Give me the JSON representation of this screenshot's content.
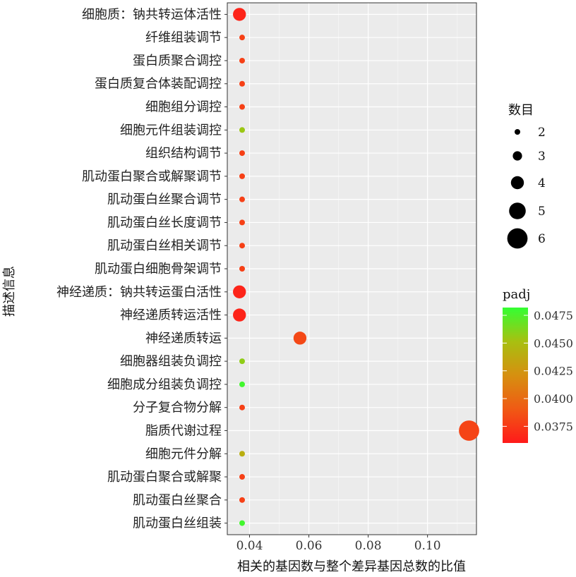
{
  "chart_data": {
    "type": "scatter",
    "title": "",
    "xlabel": "相关的基因数与整个差异基因总数的比值",
    "ylabel": "描述信息",
    "xlim": [
      0.0325,
      0.1165
    ],
    "xticks": [
      "0.04",
      "0.06",
      "0.08",
      "0.10"
    ],
    "xtick_values": [
      0.04,
      0.06,
      0.08,
      0.1
    ],
    "grid": true,
    "categories": [
      "细胞质：钠共转运体活性",
      "纤维组装调节",
      "蛋白质聚合调控",
      "蛋白质复合体装配调控",
      "细胞组分调控",
      "细胞元件组装调控",
      "组织结构调节",
      "肌动蛋白聚合或解聚调节",
      "肌动蛋白丝聚合调节",
      "肌动蛋白丝长度调节",
      "肌动蛋白丝相关调节",
      "肌动蛋白细胞骨架调节",
      "神经递质：钠共转运蛋白活性",
      "神经递质转运活性",
      "神经递质转运",
      "细胞器组装负调控",
      "细胞成分组装负调控",
      "分子复合物分解",
      "脂质代谢过程",
      "细胞元件分解",
      "肌动蛋白聚合或解聚",
      "肌动蛋白丝聚合",
      "肌动蛋白丝组装"
    ],
    "x": [
      0.0366,
      0.0375,
      0.0375,
      0.0375,
      0.0375,
      0.0375,
      0.0375,
      0.0375,
      0.0375,
      0.0375,
      0.0375,
      0.0375,
      0.0366,
      0.0366,
      0.057,
      0.0375,
      0.0375,
      0.0375,
      0.114,
      0.0375,
      0.0375,
      0.0375,
      0.0375
    ],
    "count": [
      4,
      2,
      2,
      2,
      2,
      2,
      2,
      2,
      2,
      2,
      2,
      2,
      4,
      4,
      4,
      2,
      2,
      2,
      6,
      2,
      2,
      2,
      2
    ],
    "padj": [
      0.0365,
      0.0378,
      0.0378,
      0.0378,
      0.0378,
      0.0455,
      0.0378,
      0.0378,
      0.0378,
      0.0378,
      0.0378,
      0.0378,
      0.0365,
      0.0365,
      0.0382,
      0.0458,
      0.0478,
      0.0378,
      0.038,
      0.044,
      0.0378,
      0.0378,
      0.0478
    ],
    "size_legend": {
      "title": "数目",
      "labels": [
        "2",
        "3",
        "4",
        "5",
        "6"
      ],
      "values": [
        2,
        3,
        4,
        5,
        6
      ]
    },
    "color_legend": {
      "title": "padj",
      "labels": [
        "0.0475",
        "0.0450",
        "0.0425",
        "0.0400",
        "0.0375"
      ],
      "values": [
        0.0475,
        0.045,
        0.0425,
        0.04,
        0.0375
      ],
      "range": [
        0.036,
        0.0482
      ],
      "low_color": "#ff1a1a",
      "high_color": "#33ff33"
    },
    "panel_background": "#ebebeb",
    "grid_color": "#ffffff"
  }
}
